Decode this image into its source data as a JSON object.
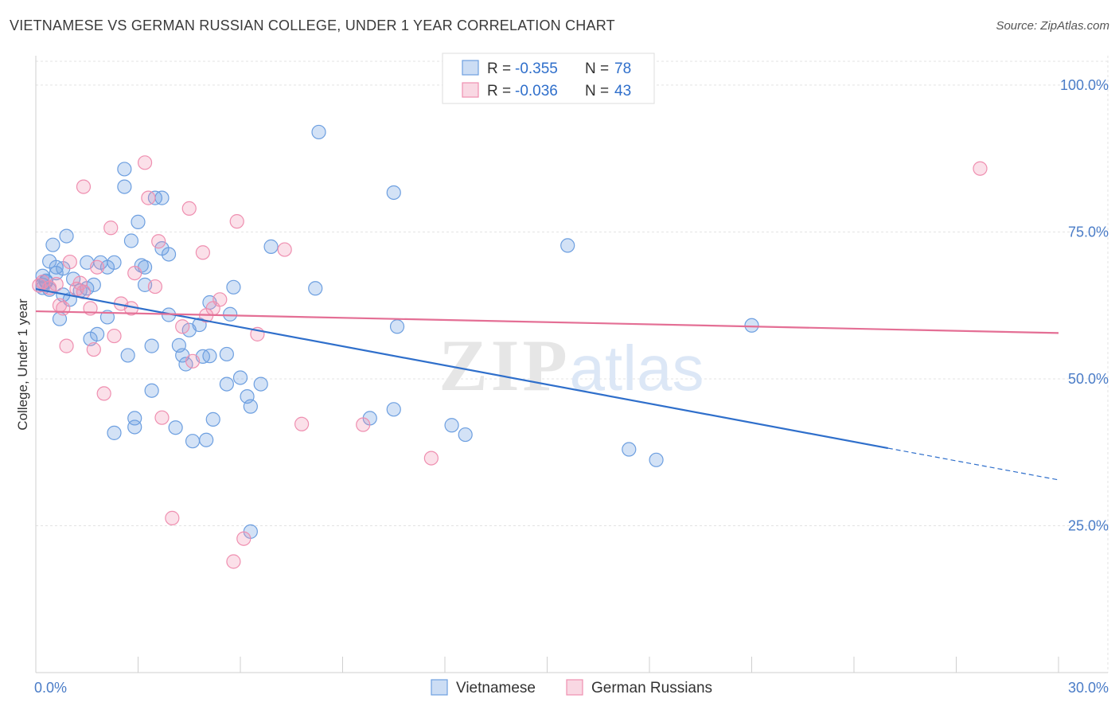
{
  "title": "VIETNAMESE VS GERMAN RUSSIAN COLLEGE, UNDER 1 YEAR CORRELATION CHART",
  "source": "Source: ZipAtlas.com",
  "watermark": {
    "zip": "ZIP",
    "atlas": "atlas"
  },
  "chart_data": {
    "type": "scatter",
    "title": "VIETNAMESE VS GERMAN RUSSIAN COLLEGE, UNDER 1 YEAR CORRELATION CHART",
    "ylabel": "College, Under 1 year",
    "xlabel": "",
    "xlim": [
      0,
      30
    ],
    "ylim": [
      0,
      105
    ],
    "x_tick_labels": [
      {
        "value": 0,
        "label": "0.0%"
      },
      {
        "value": 30,
        "label": "30.0%"
      }
    ],
    "y_tick_labels": [
      {
        "value": 100,
        "label": "100.0%"
      },
      {
        "value": 75,
        "label": "75.0%"
      },
      {
        "value": 50,
        "label": "50.0%"
      },
      {
        "value": 25,
        "label": "25.0%"
      }
    ],
    "grid": true,
    "legend_position": "top-center",
    "legend": [
      {
        "name": "Vietnamese",
        "r_label": "R =",
        "r": "-0.355",
        "n_label": "N =",
        "n": "78",
        "color": "#6d9fe0"
      },
      {
        "name": "German Russians",
        "r_label": "R =",
        "r": "-0.036",
        "n_label": "N =",
        "n": "43",
        "color": "#ef8fb0"
      }
    ],
    "series": [
      {
        "name": "Vietnamese",
        "color": "#6d9fe0",
        "trend": {
          "x": [
            0,
            25
          ],
          "y": [
            65.3,
            38.2
          ],
          "dashed_to": [
            30,
            32.8
          ],
          "color": "#2f6fcb"
        },
        "points": [
          [
            0.2,
            67.5
          ],
          [
            0.2,
            65.5
          ],
          [
            0.3,
            66.7
          ],
          [
            0.3,
            66.5
          ],
          [
            0.4,
            65.2
          ],
          [
            0.4,
            70.0
          ],
          [
            0.5,
            72.8
          ],
          [
            0.6,
            68.0
          ],
          [
            0.6,
            69.0
          ],
          [
            0.7,
            60.2
          ],
          [
            0.8,
            64.3
          ],
          [
            0.8,
            68.8
          ],
          [
            0.9,
            74.3
          ],
          [
            1.0,
            63.5
          ],
          [
            1.1,
            67.0
          ],
          [
            1.3,
            65.0
          ],
          [
            1.5,
            65.4
          ],
          [
            1.5,
            69.8
          ],
          [
            1.6,
            56.8
          ],
          [
            1.7,
            66.0
          ],
          [
            1.8,
            57.6
          ],
          [
            1.9,
            69.8
          ],
          [
            2.1,
            69.0
          ],
          [
            2.1,
            60.5
          ],
          [
            2.3,
            69.8
          ],
          [
            2.3,
            40.8
          ],
          [
            2.6,
            85.7
          ],
          [
            2.6,
            82.7
          ],
          [
            2.7,
            54.0
          ],
          [
            2.8,
            73.5
          ],
          [
            2.9,
            43.3
          ],
          [
            2.9,
            41.8
          ],
          [
            3.0,
            76.7
          ],
          [
            3.1,
            69.3
          ],
          [
            3.2,
            69.0
          ],
          [
            3.2,
            66.0
          ],
          [
            3.4,
            55.6
          ],
          [
            3.4,
            48.0
          ],
          [
            3.5,
            80.8
          ],
          [
            3.7,
            80.8
          ],
          [
            3.7,
            72.2
          ],
          [
            3.9,
            71.2
          ],
          [
            3.9,
            60.9
          ],
          [
            4.1,
            41.7
          ],
          [
            4.2,
            55.7
          ],
          [
            4.3,
            54.0
          ],
          [
            4.4,
            52.5
          ],
          [
            4.5,
            58.3
          ],
          [
            4.6,
            39.4
          ],
          [
            4.8,
            59.2
          ],
          [
            4.9,
            53.8
          ],
          [
            5.0,
            39.6
          ],
          [
            5.1,
            53.9
          ],
          [
            5.1,
            63.0
          ],
          [
            5.2,
            43.1
          ],
          [
            5.6,
            54.2
          ],
          [
            5.6,
            49.1
          ],
          [
            5.7,
            61.0
          ],
          [
            5.8,
            65.6
          ],
          [
            6.0,
            50.2
          ],
          [
            6.2,
            47.0
          ],
          [
            6.3,
            45.3
          ],
          [
            6.6,
            49.1
          ],
          [
            6.9,
            72.5
          ],
          [
            8.2,
            65.4
          ],
          [
            8.3,
            92.0
          ],
          [
            9.8,
            43.3
          ],
          [
            10.5,
            81.7
          ],
          [
            10.5,
            44.8
          ],
          [
            10.6,
            58.9
          ],
          [
            12.2,
            42.1
          ],
          [
            12.6,
            40.5
          ],
          [
            15.6,
            72.7
          ],
          [
            17.4,
            38.0
          ],
          [
            18.2,
            36.2
          ],
          [
            21.0,
            59.1
          ],
          [
            6.3,
            24.0
          ],
          [
            0.2,
            66.0
          ]
        ]
      },
      {
        "name": "German Russians",
        "color": "#ef8fb0",
        "trend": {
          "x": [
            0,
            30
          ],
          "y": [
            61.5,
            57.8
          ],
          "color": "#e46f95"
        },
        "points": [
          [
            0.1,
            65.9
          ],
          [
            0.2,
            66.5
          ],
          [
            0.4,
            65.5
          ],
          [
            0.6,
            66.1
          ],
          [
            0.7,
            62.5
          ],
          [
            0.8,
            62.0
          ],
          [
            0.9,
            55.6
          ],
          [
            1.0,
            69.9
          ],
          [
            1.2,
            65.3
          ],
          [
            1.3,
            66.3
          ],
          [
            1.4,
            64.8
          ],
          [
            1.4,
            82.7
          ],
          [
            1.6,
            62.0
          ],
          [
            1.7,
            55.0
          ],
          [
            1.8,
            69.0
          ],
          [
            2.0,
            47.5
          ],
          [
            2.2,
            75.7
          ],
          [
            2.3,
            57.3
          ],
          [
            2.5,
            62.8
          ],
          [
            2.8,
            62.0
          ],
          [
            2.9,
            68.0
          ],
          [
            3.2,
            86.8
          ],
          [
            3.3,
            80.8
          ],
          [
            3.5,
            65.7
          ],
          [
            3.6,
            73.4
          ],
          [
            3.7,
            43.4
          ],
          [
            4.0,
            26.3
          ],
          [
            4.3,
            58.9
          ],
          [
            4.5,
            79.0
          ],
          [
            4.6,
            53.0
          ],
          [
            4.9,
            71.5
          ],
          [
            5.0,
            60.8
          ],
          [
            5.2,
            62.0
          ],
          [
            5.4,
            63.5
          ],
          [
            5.8,
            18.9
          ],
          [
            5.9,
            76.8
          ],
          [
            6.1,
            22.8
          ],
          [
            6.5,
            57.6
          ],
          [
            7.3,
            72.0
          ],
          [
            7.8,
            42.3
          ],
          [
            9.6,
            42.2
          ],
          [
            11.6,
            36.5
          ],
          [
            27.7,
            85.8
          ]
        ]
      }
    ]
  }
}
